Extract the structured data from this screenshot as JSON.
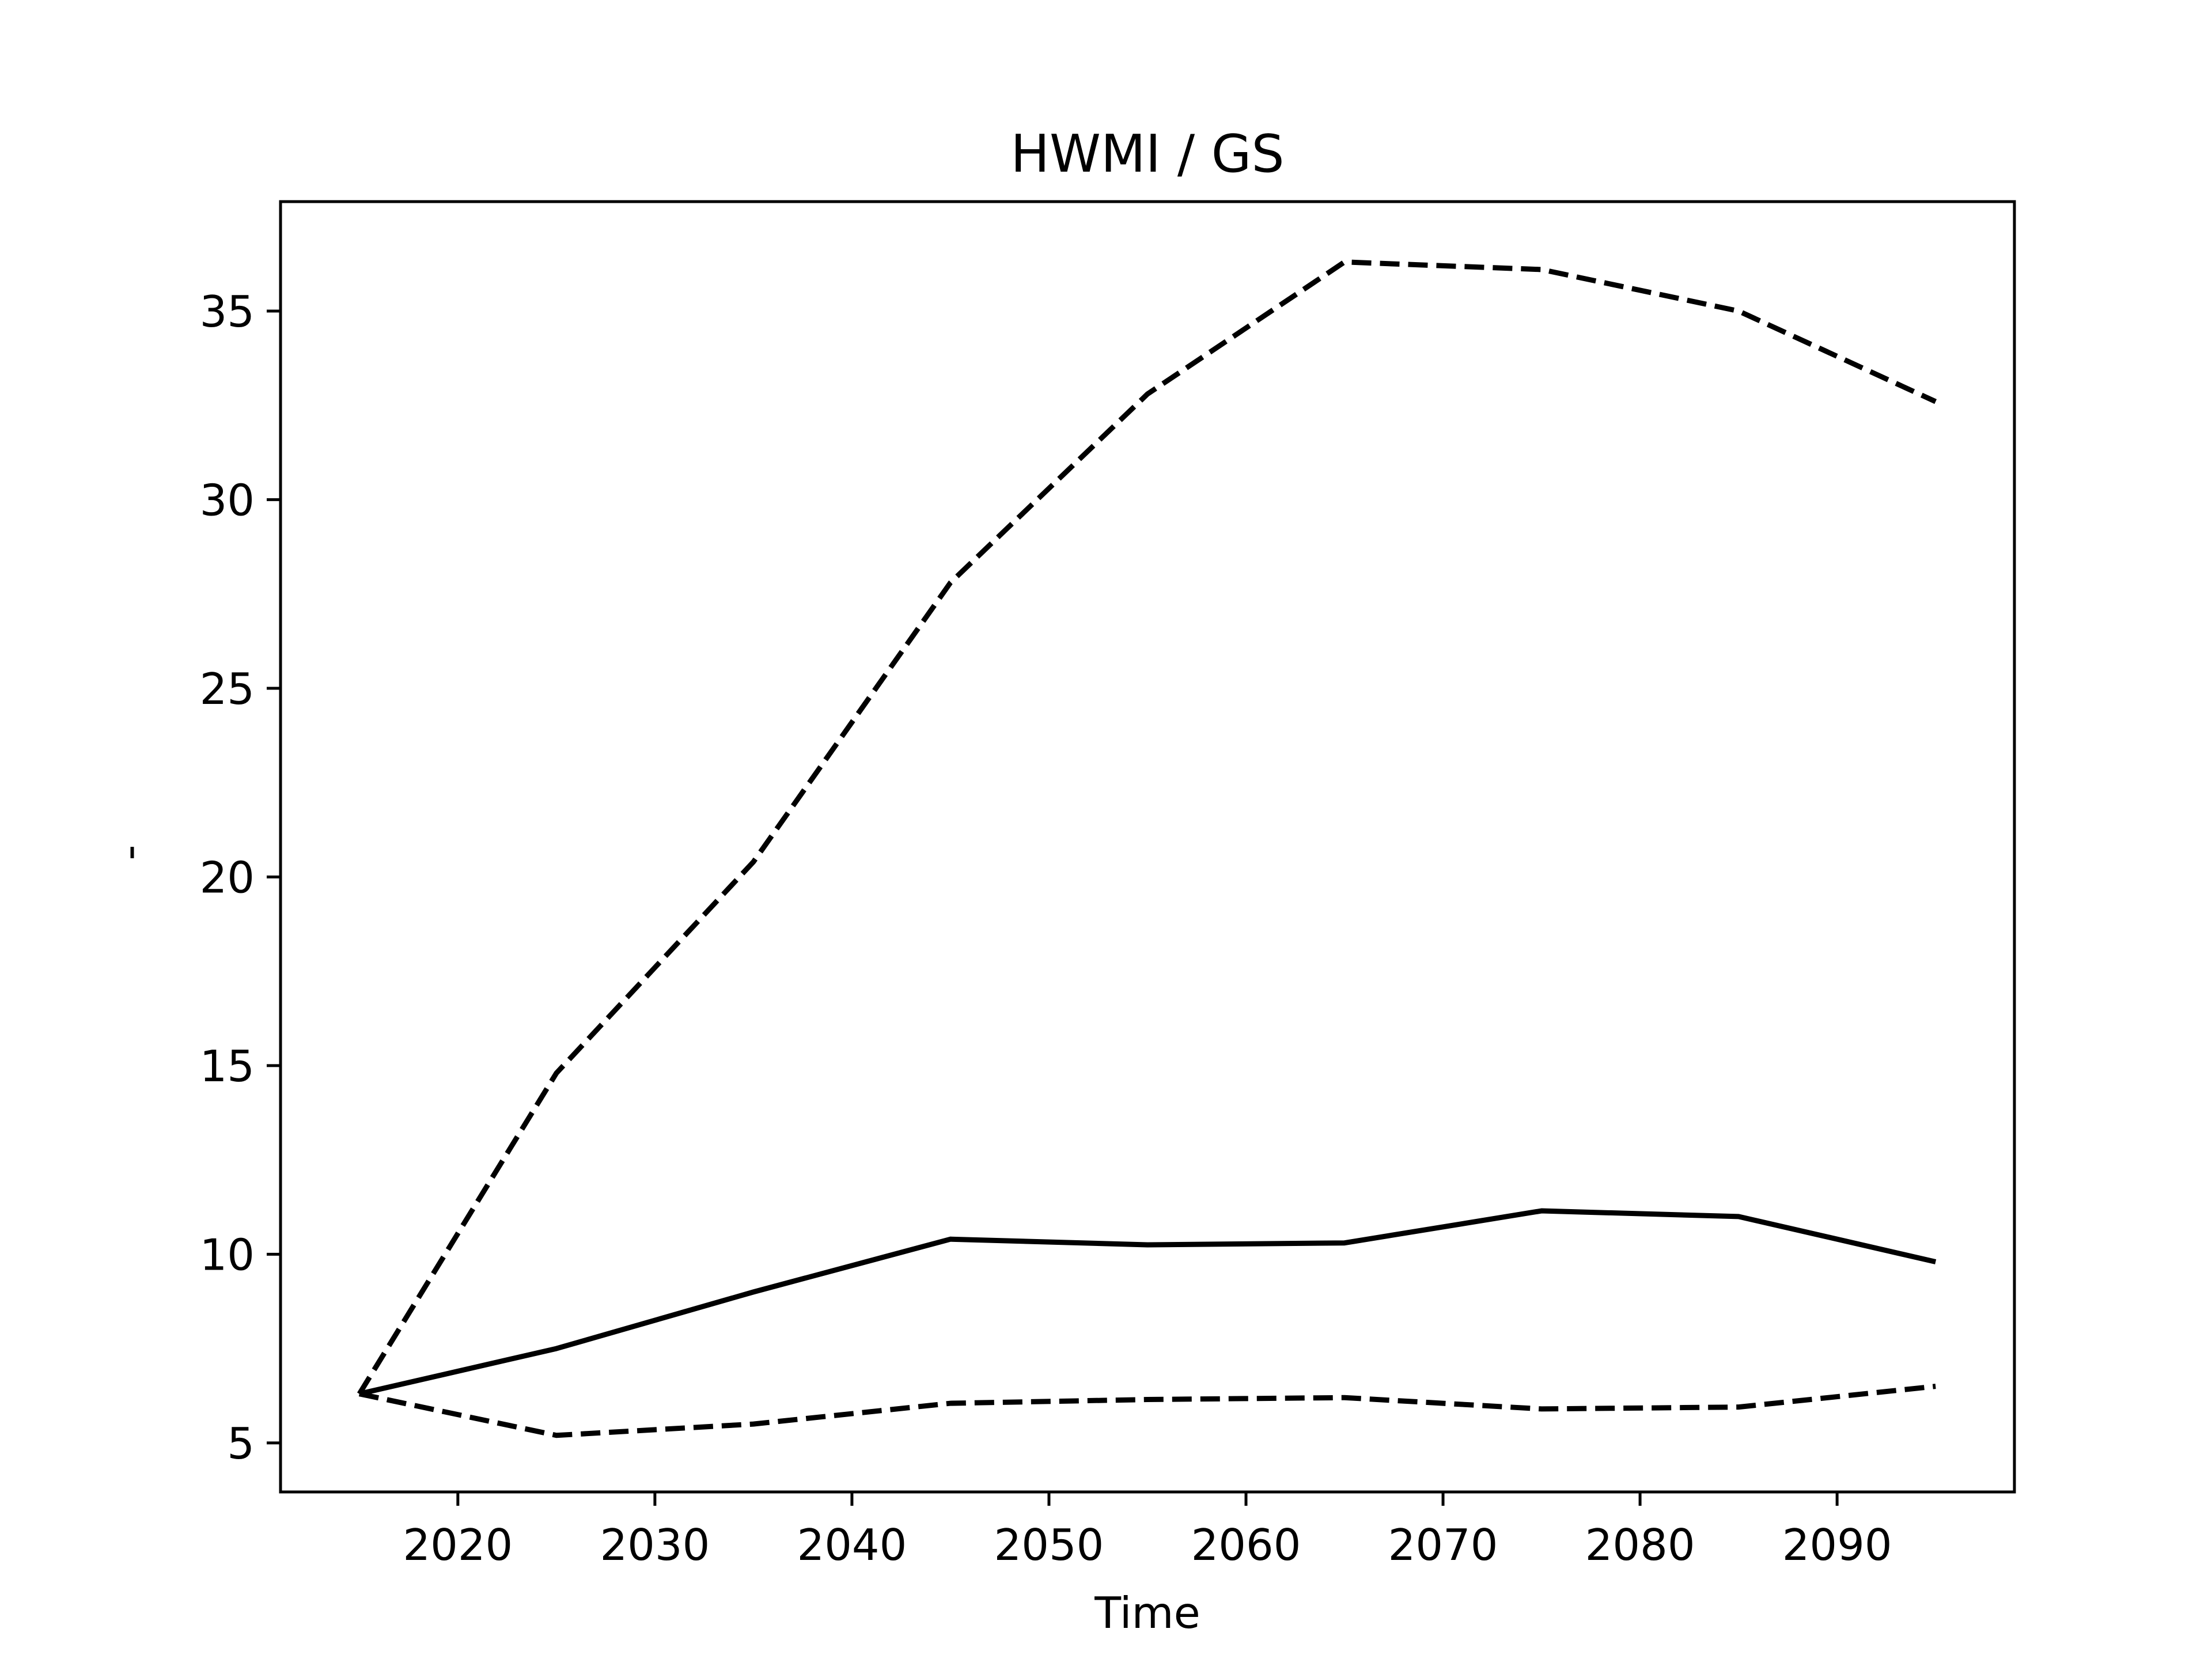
{
  "chart_data": {
    "type": "line",
    "title": "HWMI / GS",
    "xlabel": "Time",
    "ylabel": "-",
    "xlim": [
      2011,
      2099
    ],
    "ylim": [
      3.7,
      37.9
    ],
    "xticks": [
      2020,
      2030,
      2040,
      2050,
      2060,
      2070,
      2080,
      2090
    ],
    "yticks": [
      5,
      10,
      15,
      20,
      25,
      30,
      35
    ],
    "grid": false,
    "legend": "none",
    "x": [
      2015,
      2025,
      2035,
      2045,
      2055,
      2065,
      2075,
      2085,
      2095
    ],
    "series": [
      {
        "style": "solid",
        "color": "#000000",
        "values": [
          6.3,
          7.5,
          9.0,
          10.4,
          10.25,
          10.3,
          11.15,
          11.0,
          9.8
        ]
      },
      {
        "style": "dashed",
        "color": "#000000",
        "values": [
          6.3,
          14.8,
          20.4,
          27.8,
          32.8,
          36.3,
          36.1,
          35.0,
          32.6
        ]
      },
      {
        "style": "dashed",
        "color": "#000000",
        "values": [
          6.3,
          5.2,
          5.5,
          6.05,
          6.15,
          6.2,
          5.9,
          5.95,
          6.5
        ]
      }
    ]
  }
}
